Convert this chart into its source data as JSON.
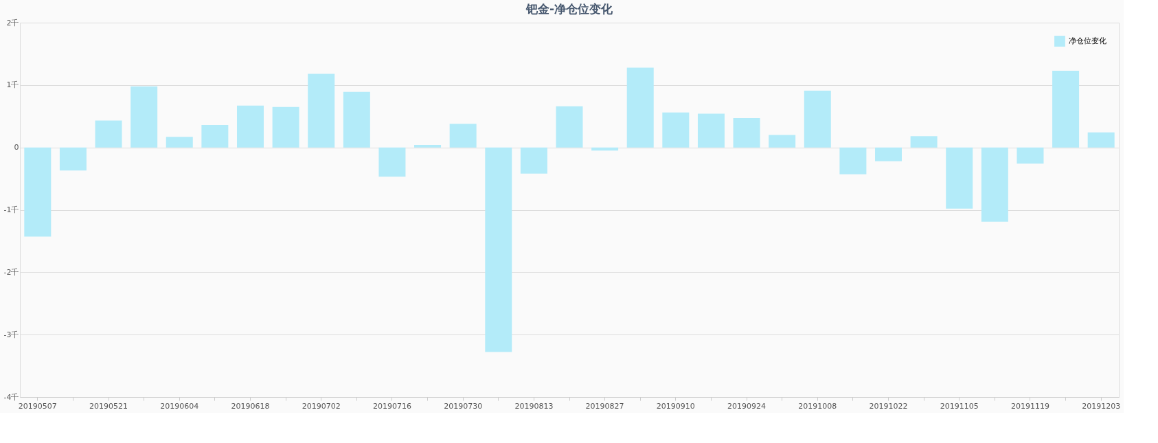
{
  "chart_data": {
    "type": "bar",
    "title": "钯金-净仓位变化",
    "categories": [
      "20190507",
      null,
      "20190521",
      null,
      "20190604",
      null,
      "20190618",
      null,
      "20190702",
      null,
      "20190716",
      null,
      "20190730",
      null,
      "20190813",
      null,
      "20190827",
      null,
      "20190910",
      null,
      "20190924",
      null,
      "20191008",
      null,
      "20191022",
      null,
      "20191105",
      null,
      "20191119",
      null,
      "20191203"
    ],
    "series": [
      {
        "name": "净仓位变化",
        "color": "#b3ebf9",
        "values": [
          -1.43,
          -0.37,
          0.43,
          0.98,
          0.17,
          0.36,
          0.67,
          0.65,
          1.18,
          0.89,
          -0.47,
          0.04,
          0.38,
          -3.28,
          -0.42,
          0.66,
          -0.05,
          1.28,
          0.56,
          0.54,
          0.47,
          0.2,
          0.91,
          -0.43,
          -0.22,
          0.18,
          -0.98,
          -1.19,
          -0.26,
          1.23,
          0.24
        ]
      }
    ],
    "ylim": [
      -4,
      2
    ],
    "yticks": [
      {
        "value": -4,
        "label": "-4千"
      },
      {
        "value": -3,
        "label": "-3千"
      },
      {
        "value": -2,
        "label": "-2千"
      },
      {
        "value": -1,
        "label": "-1千"
      },
      0,
      {
        "value": 1,
        "label": "1千"
      },
      {
        "value": 2,
        "label": "2千"
      }
    ],
    "grid": "y",
    "legend": "top right"
  }
}
